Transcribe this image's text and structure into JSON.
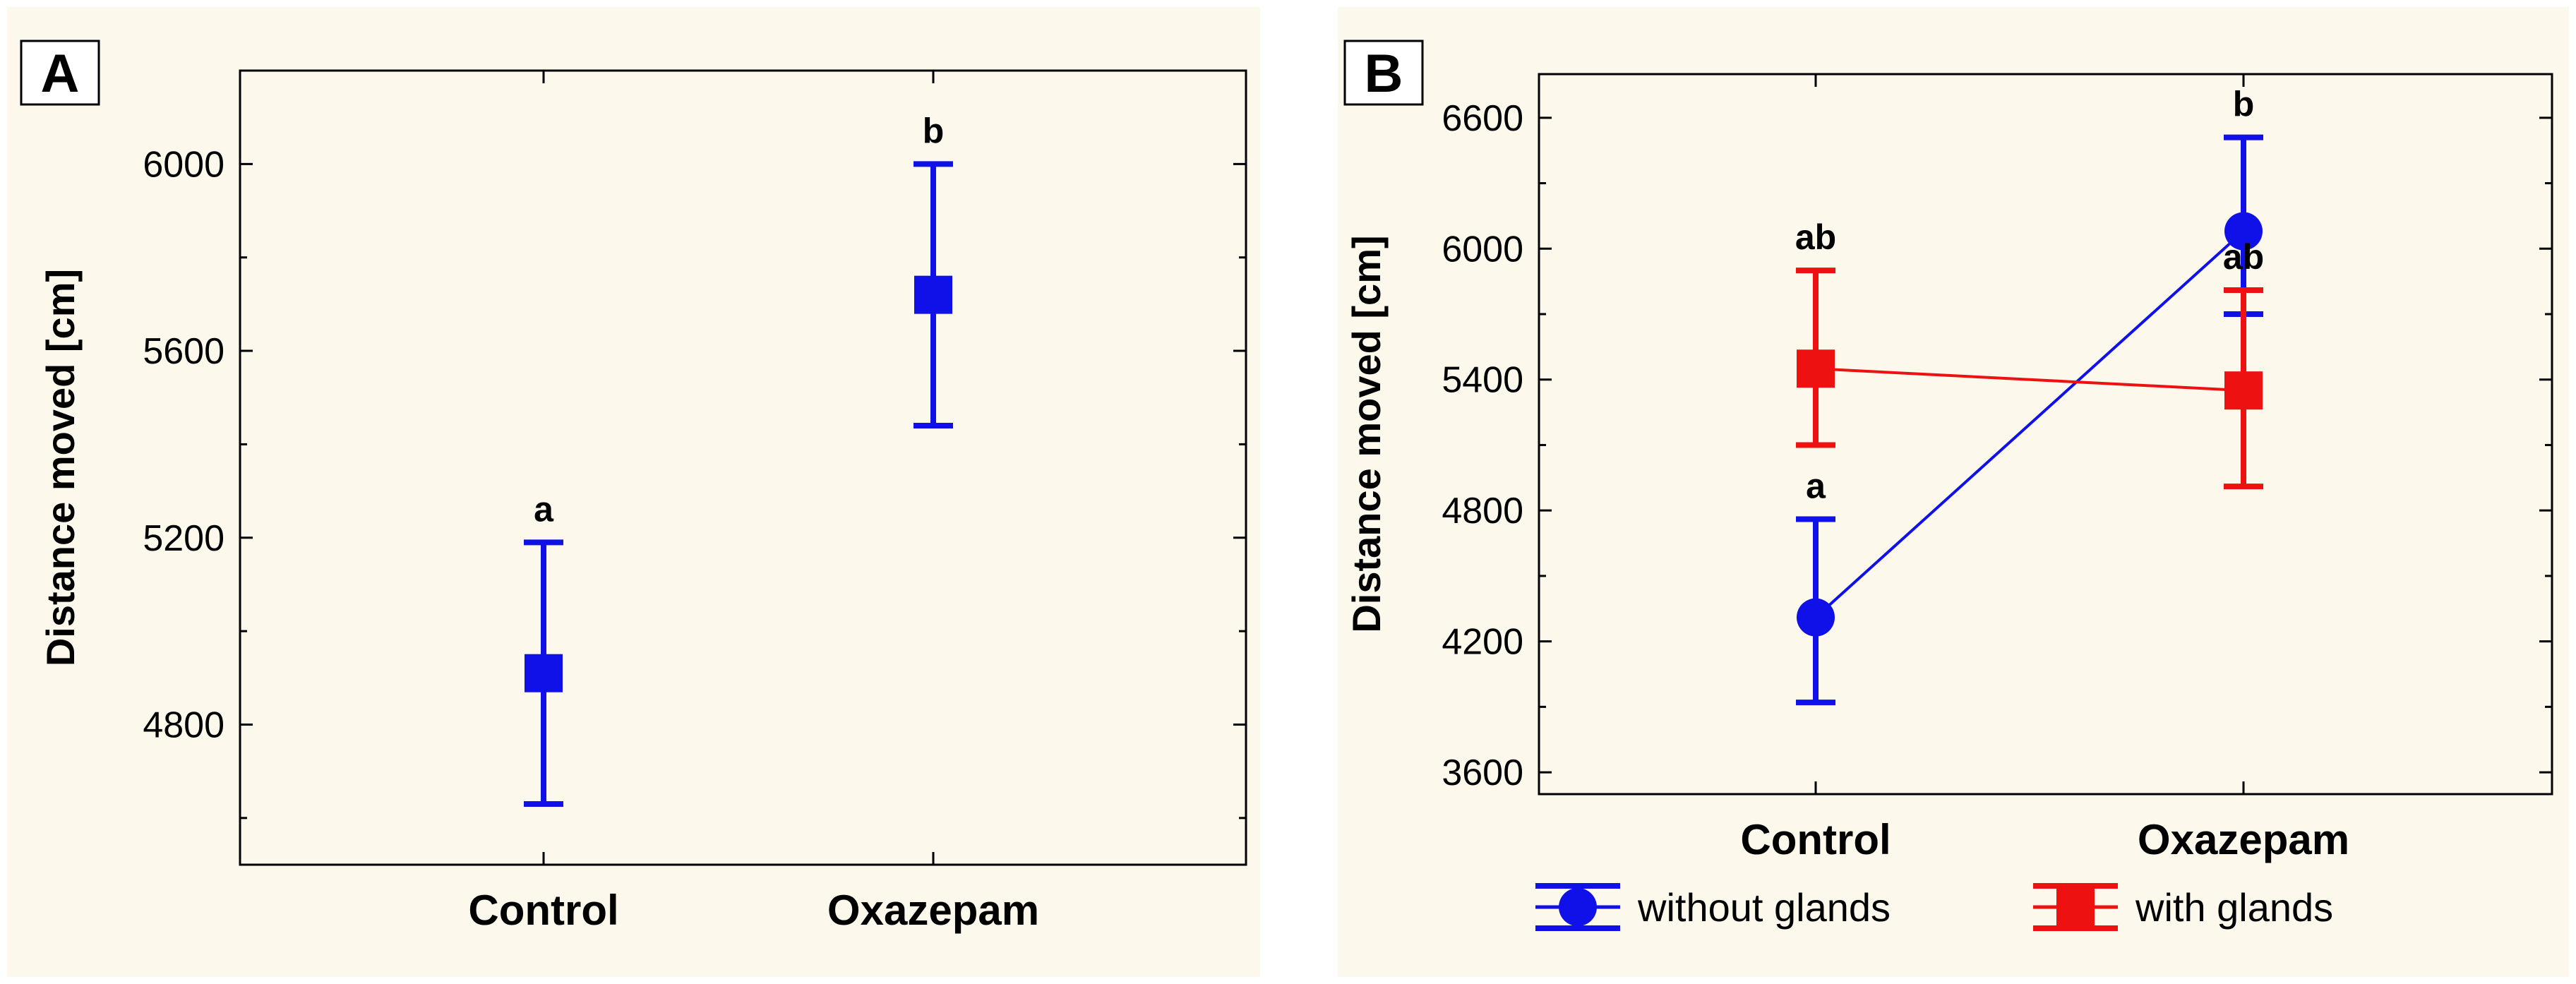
{
  "colors": {
    "background": "#fdf8ec",
    "without_glands": "#1010e8",
    "with_glands": "#ee1111",
    "axis": "#000000"
  },
  "chart_data": [
    {
      "panel_label": "A",
      "type": "scatter",
      "ylabel": "Distance moved [cm]",
      "categories": [
        "Control",
        "Oxazepam"
      ],
      "ylim": [
        4500,
        6200
      ],
      "yticks": [
        4800,
        5200,
        5600,
        6000
      ],
      "grid": false,
      "series": [
        {
          "marker": "square",
          "color": "#1010e8",
          "values": [
            4910,
            5720
          ],
          "err_low": [
            4630,
            5440
          ],
          "err_high": [
            5190,
            6000
          ],
          "labels": [
            "a",
            "b"
          ]
        }
      ]
    },
    {
      "panel_label": "B",
      "type": "line",
      "ylabel": "Distance moved [cm]",
      "categories": [
        "Control",
        "Oxazepam"
      ],
      "ylim": [
        3500,
        6800
      ],
      "yticks": [
        3600,
        4200,
        4800,
        5400,
        6000,
        6600
      ],
      "grid": false,
      "legend_position": "bottom",
      "series": [
        {
          "name": "without glands",
          "marker": "circle",
          "color": "#1010e8",
          "values": [
            4310,
            6080
          ],
          "err_low": [
            3920,
            5700
          ],
          "err_high": [
            4760,
            6510
          ],
          "labels": [
            "a",
            "b"
          ]
        },
        {
          "name": "with glands",
          "marker": "square",
          "color": "#ee1111",
          "values": [
            5450,
            5350
          ],
          "err_low": [
            5100,
            4910
          ],
          "err_high": [
            5900,
            5810
          ],
          "labels": [
            "ab",
            "ab"
          ]
        }
      ]
    }
  ]
}
